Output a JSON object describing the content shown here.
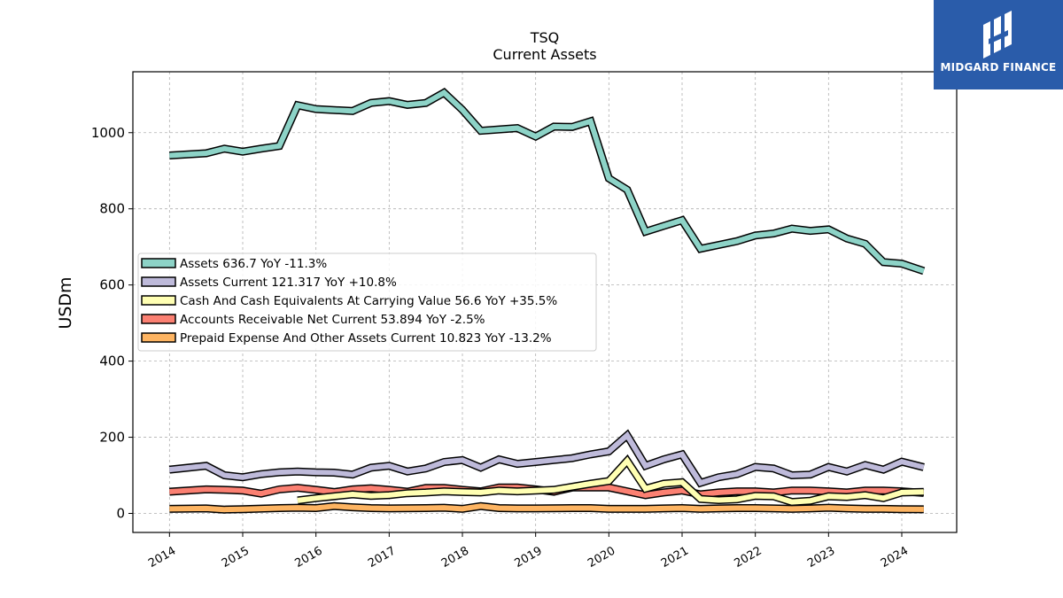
{
  "chart_data": {
    "type": "line",
    "title": "TSQ",
    "subtitle": "Current  Assets",
    "ylabel": "USDm",
    "xlabel": "",
    "ylim": [
      -50,
      1160
    ],
    "xlim": [
      2013.5,
      2024.75
    ],
    "yticks": [
      0,
      200,
      400,
      600,
      800,
      1000
    ],
    "xticks": [
      "2014",
      "2015",
      "2016",
      "2017",
      "2018",
      "2019",
      "2020",
      "2021",
      "2022",
      "2023",
      "2024"
    ],
    "grid": true,
    "legend_position": "center-left",
    "series": [
      {
        "name": "Assets",
        "legend": "Assets  636.7 YoY -11.3%",
        "color": "#8dd3c7",
        "x": [
          2014.0,
          2014.5,
          2014.75,
          2015.0,
          2015.25,
          2015.5,
          2015.75,
          2016.0,
          2016.5,
          2016.75,
          2017.0,
          2017.25,
          2017.5,
          2017.75,
          2018.0,
          2018.25,
          2018.75,
          2019.0,
          2019.25,
          2019.5,
          2019.75,
          2020.0,
          2020.25,
          2020.5,
          2020.75,
          2021.0,
          2021.25,
          2021.5,
          2021.75,
          2022.0,
          2022.25,
          2022.5,
          2022.75,
          2023.0,
          2023.25,
          2023.5,
          2023.75,
          2024.0,
          2024.3
        ],
        "values": [
          940,
          946,
          958,
          950,
          958,
          965,
          1072,
          1062,
          1057,
          1078,
          1083,
          1073,
          1078,
          1105,
          1060,
          1005,
          1012,
          990,
          1016,
          1015,
          1030,
          880,
          850,
          740,
          755,
          770,
          695,
          705,
          715,
          730,
          735,
          748,
          742,
          746,
          722,
          708,
          660,
          656,
          636.7
        ]
      },
      {
        "name": "Assets Current",
        "legend": "Assets Current  121.317 YoY +10.8%",
        "color": "#bebada",
        "x": [
          2014.0,
          2014.5,
          2014.75,
          2015.0,
          2015.25,
          2015.5,
          2015.75,
          2016.0,
          2016.25,
          2016.5,
          2016.75,
          2017.0,
          2017.25,
          2017.5,
          2017.75,
          2018.0,
          2018.25,
          2018.5,
          2018.75,
          2019.0,
          2019.25,
          2019.5,
          2019.75,
          2020.0,
          2020.25,
          2020.5,
          2020.75,
          2021.0,
          2021.25,
          2021.5,
          2021.75,
          2022.0,
          2022.25,
          2022.5,
          2022.75,
          2023.0,
          2023.25,
          2023.5,
          2023.75,
          2024.0,
          2024.3
        ],
        "values": [
          115,
          125,
          100,
          95,
          103,
          108,
          110,
          108,
          107,
          102,
          120,
          125,
          110,
          118,
          135,
          140,
          120,
          142,
          130,
          135,
          140,
          145,
          155,
          163,
          205,
          125,
          142,
          155,
          80,
          95,
          103,
          122,
          118,
          100,
          102,
          122,
          110,
          127,
          115,
          136,
          121.317
        ]
      },
      {
        "name": "Cash And Cash Equivalents At Carrying Value",
        "legend": "Cash And Cash Equivalents At Carrying Value  56.6 YoY +35.5%",
        "color": "#ffffb3",
        "x": [
          2015.75,
          2016.0,
          2016.5,
          2016.75,
          2017.0,
          2017.25,
          2017.5,
          2017.75,
          2018.0,
          2018.25,
          2018.5,
          2018.75,
          2019.0,
          2019.25,
          2019.5,
          2019.75,
          2020.0,
          2020.25,
          2020.5,
          2020.75,
          2021.0,
          2021.25,
          2021.5,
          2021.75,
          2022.0,
          2022.25,
          2022.5,
          2022.75,
          2023.0,
          2023.25,
          2023.5,
          2023.75,
          2024.0,
          2024.3
        ],
        "values": [
          34,
          40,
          50,
          46,
          48,
          53,
          55,
          58,
          56,
          55,
          60,
          58,
          60,
          62,
          70,
          78,
          85,
          138,
          65,
          78,
          82,
          38,
          35,
          37,
          46,
          45,
          30,
          33,
          45,
          43,
          48,
          40,
          55,
          56.6
        ]
      },
      {
        "name": "Accounts Receivable Net Current",
        "legend": "Accounts Receivable Net Current  53.894 YoY -2.5%",
        "color": "#fb8072",
        "x": [
          2014.0,
          2014.5,
          2014.75,
          2015.0,
          2015.25,
          2015.5,
          2015.75,
          2016.0,
          2016.25,
          2016.5,
          2016.75,
          2017.0,
          2017.25,
          2017.5,
          2017.75,
          2018.0,
          2018.25,
          2018.5,
          2018.75,
          2019.0,
          2019.25,
          2019.5,
          2019.75,
          2020.0,
          2020.25,
          2020.5,
          2020.75,
          2021.0,
          2021.25,
          2021.5,
          2021.75,
          2022.0,
          2022.25,
          2022.5,
          2022.75,
          2023.0,
          2023.25,
          2023.5,
          2023.75,
          2024.0,
          2024.3
        ],
        "values": [
          57,
          63,
          62,
          60,
          52,
          63,
          67,
          62,
          56,
          63,
          66,
          62,
          57,
          67,
          67,
          62,
          58,
          68,
          68,
          63,
          57,
          68,
          68,
          68,
          58,
          48,
          55,
          60,
          50,
          55,
          58,
          58,
          55,
          60,
          60,
          58,
          55,
          60,
          60,
          58,
          53.894
        ]
      },
      {
        "name": "Prepaid Expense And Other Assets Current",
        "legend": "Prepaid Expense And Other Assets Current  10.823 YoY -13.2%",
        "color": "#fdb462",
        "x": [
          2014.0,
          2014.5,
          2014.75,
          2015.0,
          2015.5,
          2015.75,
          2016.0,
          2016.25,
          2016.5,
          2016.75,
          2017.0,
          2017.5,
          2017.75,
          2018.0,
          2018.25,
          2018.5,
          2018.75,
          2019.0,
          2019.5,
          2019.75,
          2020.0,
          2020.25,
          2020.5,
          2020.75,
          2021.0,
          2021.25,
          2021.5,
          2021.75,
          2022.0,
          2022.25,
          2022.5,
          2022.75,
          2023.0,
          2023.25,
          2023.5,
          2023.75,
          2024.0,
          2024.3
        ],
        "values": [
          12,
          13,
          10,
          11,
          14,
          15,
          14,
          19,
          16,
          14,
          13,
          14,
          15,
          12,
          19,
          14,
          13,
          13,
          14,
          14,
          12,
          12,
          12,
          13,
          14,
          12,
          13,
          14,
          14,
          13,
          12,
          13,
          15,
          13,
          12,
          12,
          11,
          10.823
        ]
      }
    ]
  },
  "logo": {
    "text": "MIDGARD FINANCE",
    "background": "#2a5caa"
  }
}
